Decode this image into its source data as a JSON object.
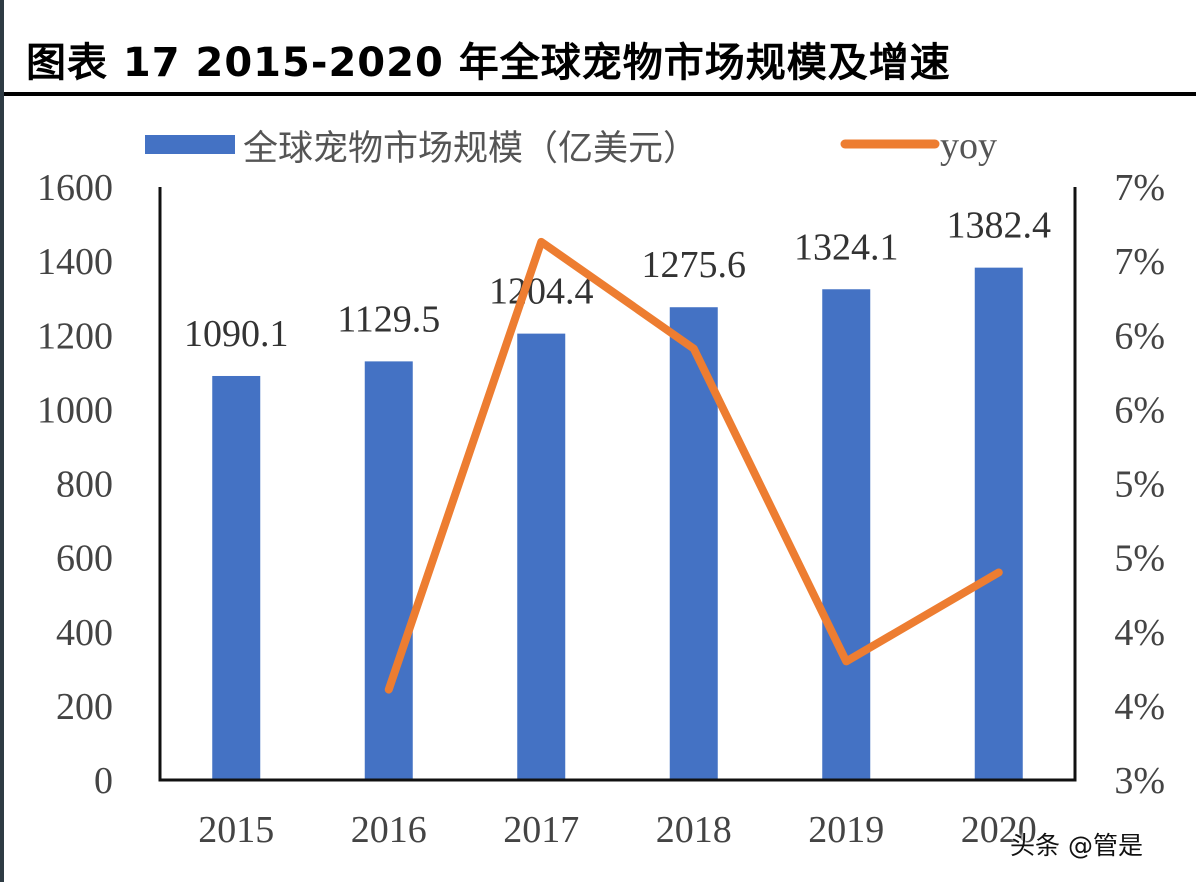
{
  "title": "图表 17 2015-2020 年全球宠物市场规模及增速",
  "watermark": "头条 @管是",
  "chart_data": {
    "type": "bar+line",
    "title": "图表 17 2015-2020 年全球宠物市场规模及增速",
    "categories": [
      "2015",
      "2016",
      "2017",
      "2018",
      "2019",
      "2020"
    ],
    "series": [
      {
        "name": "全球宠物市场规模（亿美元）",
        "type": "bar",
        "axis": "left",
        "color": "#4472C4",
        "values": [
          1090.1,
          1129.5,
          1204.4,
          1275.6,
          1324.1,
          1382.4
        ],
        "labels": [
          "1090.1",
          "1129.5",
          "1204.4",
          "1275.6",
          "1324.1",
          "1382.4"
        ]
      },
      {
        "name": "yoy",
        "type": "line",
        "axis": "right",
        "color": "#ED7D31",
        "values": [
          null,
          3.61,
          6.63,
          5.91,
          3.8,
          4.4
        ]
      }
    ],
    "y_left": {
      "range": [
        0,
        1600
      ],
      "ticks": [
        "0",
        "200",
        "400",
        "600",
        "800",
        "1000",
        "1200",
        "1400",
        "1600"
      ]
    },
    "y_right": {
      "range": [
        3,
        7
      ],
      "unit": "%",
      "ticks": [
        "3%",
        "4%",
        "4%",
        "5%",
        "5%",
        "6%",
        "6%",
        "7%",
        "7%"
      ]
    },
    "legend": "top",
    "grid": false
  }
}
